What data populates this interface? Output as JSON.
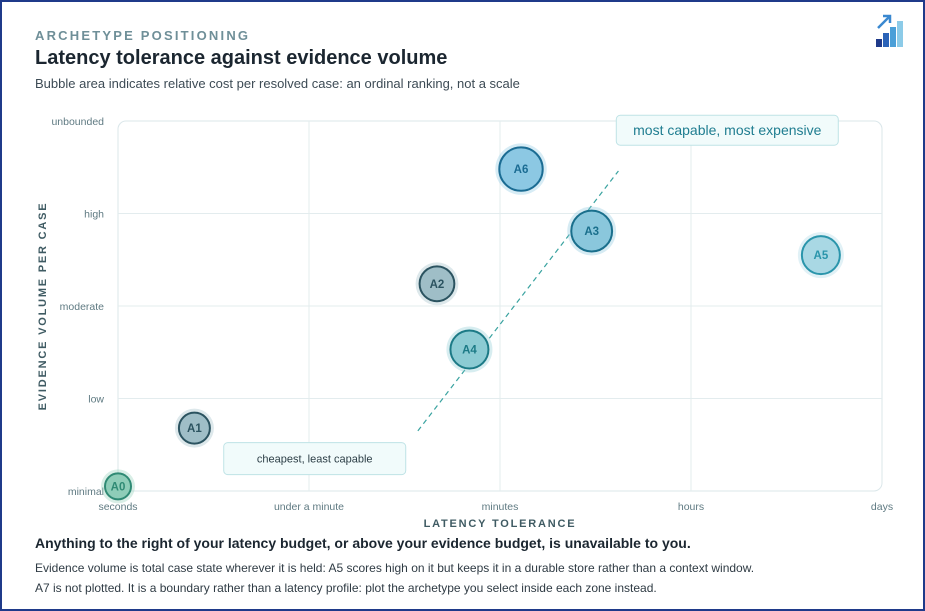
{
  "header": {
    "kicker": "ARCHETYPE POSITIONING",
    "title": "Latency tolerance against evidence volume",
    "subtitle": "Bubble area indicates relative cost per resolved case: an ordinal ranking, not a scale"
  },
  "chart_data": {
    "type": "scatter",
    "xlabel": "LATENCY TOLERANCE",
    "ylabel": "EVIDENCE VOLUME PER CASE",
    "x_ticks": [
      "seconds",
      "under a minute",
      "minutes",
      "hours",
      "days"
    ],
    "y_ticks": [
      "minimal",
      "low",
      "moderate",
      "high",
      "unbounded"
    ],
    "xlim": [
      0,
      4
    ],
    "ylim": [
      0,
      4
    ],
    "grid": true,
    "points": [
      {
        "label": "A0",
        "x": 0.0,
        "y": 0.05,
        "cost_rank": 1,
        "color": "#8ecdb8",
        "stroke": "#2f8a74"
      },
      {
        "label": "A1",
        "x": 0.4,
        "y": 0.68,
        "cost_rank": 2,
        "color": "#9fbec7",
        "stroke": "#2b5360"
      },
      {
        "label": "A2",
        "x": 1.67,
        "y": 2.24,
        "cost_rank": 3,
        "color": "#9fbec7",
        "stroke": "#2b5360"
      },
      {
        "label": "A4",
        "x": 1.84,
        "y": 1.53,
        "cost_rank": 4,
        "color": "#8ccbd3",
        "stroke": "#1c7a86"
      },
      {
        "label": "A5",
        "x": 3.68,
        "y": 2.55,
        "cost_rank": 4,
        "color": "#a9d8e4",
        "stroke": "#2a95ab"
      },
      {
        "label": "A3",
        "x": 2.48,
        "y": 2.81,
        "cost_rank": 5,
        "color": "#8ac7dc",
        "stroke": "#1a6f8c"
      },
      {
        "label": "A6",
        "x": 2.11,
        "y": 3.48,
        "cost_rank": 6,
        "color": "#8cc8e3",
        "stroke": "#1b6c93"
      }
    ],
    "trend_line": {
      "from": {
        "x": 1.57,
        "y": 0.65
      },
      "to": {
        "x": 2.62,
        "y": 3.46
      }
    },
    "annotations": [
      {
        "text": "most capable, most expensive",
        "x": 3.19,
        "y": 3.9
      },
      {
        "text": "cheapest, least capable",
        "x": 1.03,
        "y": 0.35
      }
    ]
  },
  "notes": {
    "headline": "Anything to the right of your latency budget, or above your evidence budget, is unavailable to you.",
    "line1": "Evidence volume is total case state wherever it is held: A5 scores high on it but keeps it in a durable store rather than a context window.",
    "line2": "A7 is not plotted. It is a boundary rather than a latency profile: plot the archetype you select inside each zone instead."
  },
  "colors": {
    "grid": "#e3ecee",
    "axis_text": "#5f7a82",
    "accent": "#3aa3a0"
  }
}
